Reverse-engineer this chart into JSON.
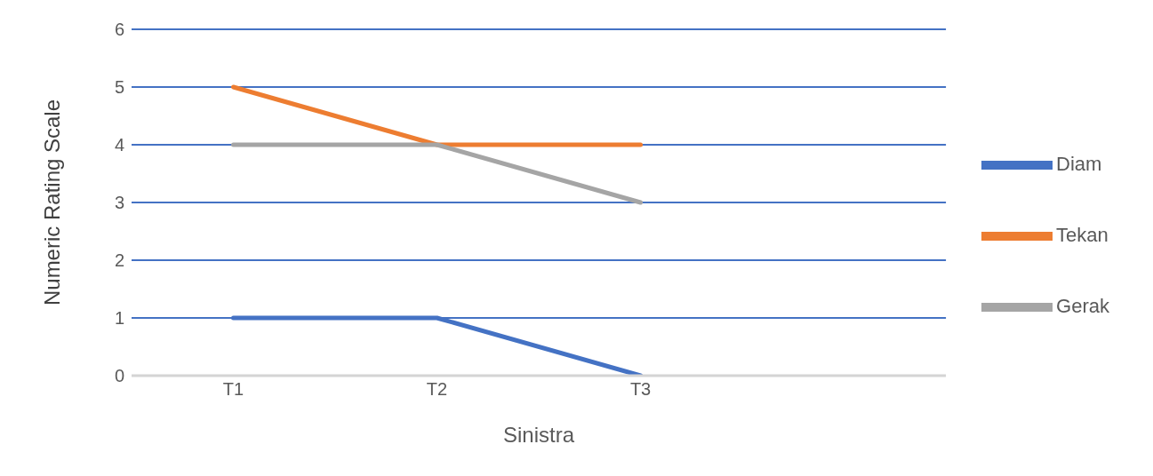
{
  "chart_data": {
    "type": "line",
    "xlabel": "Sinistra",
    "ylabel": "Numeric Rating Scale",
    "categories": [
      "T1",
      "T2",
      "T3",
      null
    ],
    "series": [
      {
        "name": "Diam",
        "color": "#4472c4",
        "values": [
          1,
          1,
          0,
          null
        ]
      },
      {
        "name": "Tekan",
        "color": "#ed7d31",
        "values": [
          5,
          4,
          4,
          null
        ]
      },
      {
        "name": "Gerak",
        "color": "#a5a5a5",
        "values": [
          4,
          4,
          3,
          null
        ]
      }
    ],
    "ylim": [
      0,
      6
    ],
    "yticks": [
      0,
      1,
      2,
      3,
      4,
      5,
      6
    ],
    "grid": "y",
    "legend": "right",
    "marker": "none",
    "line_style": "solid"
  }
}
